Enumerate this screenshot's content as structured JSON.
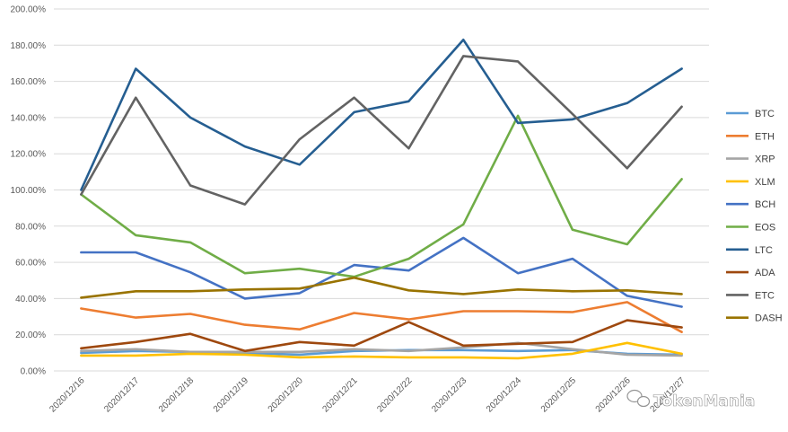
{
  "chart_data": {
    "type": "line",
    "title": "",
    "xlabel": "",
    "ylabel": "",
    "categories": [
      "2020/12/16",
      "2020/12/17",
      "2020/12/18",
      "2020/12/19",
      "2020/12/20",
      "2020/12/21",
      "2020/12/22",
      "2020/12/23",
      "2020/12/24",
      "2020/12/25",
      "2020/12/26",
      "2020/12/27"
    ],
    "ylim": [
      0,
      200
    ],
    "yticks": [
      0,
      20,
      40,
      60,
      80,
      100,
      120,
      140,
      160,
      180,
      200
    ],
    "ytick_labels": [
      "0.00%",
      "20.00%",
      "40.00%",
      "60.00%",
      "80.00%",
      "100.00%",
      "120.00%",
      "140.00%",
      "160.00%",
      "180.00%",
      "200.00%"
    ],
    "grid": "horizontal",
    "legend_position": "right",
    "series": [
      {
        "name": "BTC",
        "color": "#5B9BD5",
        "values": [
          10,
          11,
          10.5,
          10,
          9,
          11,
          11.5,
          11.5,
          11,
          11.5,
          9.5,
          9
        ]
      },
      {
        "name": "ETH",
        "color": "#ED7D31",
        "values": [
          34.5,
          29.5,
          31.5,
          25.5,
          23,
          32,
          28.5,
          33,
          33,
          32.5,
          38,
          21.5
        ]
      },
      {
        "name": "XRP",
        "color": "#A5A5A5",
        "values": [
          11,
          12,
          10.5,
          10.5,
          10.5,
          12,
          11,
          13,
          15.5,
          12,
          9,
          8.5
        ]
      },
      {
        "name": "XLM",
        "color": "#FFC000",
        "values": [
          8.5,
          8.5,
          9.5,
          9,
          7.5,
          8,
          7.5,
          7.5,
          7,
          9.5,
          15.5,
          9.5
        ]
      },
      {
        "name": "BCH",
        "color": "#4472C4",
        "values": [
          65.5,
          65.5,
          54.5,
          40,
          43,
          58.5,
          55.5,
          73.5,
          54,
          62,
          41.5,
          35.5
        ]
      },
      {
        "name": "EOS",
        "color": "#70AD47",
        "values": [
          97.5,
          75,
          71,
          54,
          56.5,
          52,
          62,
          81,
          141,
          78,
          70,
          106
        ]
      },
      {
        "name": "LTC",
        "color": "#255E91",
        "values": [
          100,
          167,
          140,
          124,
          114,
          143,
          149,
          183,
          137,
          139,
          148,
          167
        ]
      },
      {
        "name": "ADA",
        "color": "#9E480E",
        "values": [
          12.5,
          16,
          20.5,
          11,
          16,
          14,
          27,
          14,
          15,
          16,
          28,
          24
        ]
      },
      {
        "name": "ETC",
        "color": "#636363",
        "values": [
          97.5,
          151,
          102.5,
          92,
          128,
          151,
          123,
          174,
          171,
          142,
          112,
          146
        ]
      },
      {
        "name": "DASH",
        "color": "#997300",
        "values": [
          40.5,
          44,
          44,
          45,
          45.5,
          51.5,
          44.5,
          42.5,
          45,
          44,
          44.5,
          42.5
        ]
      }
    ]
  },
  "watermark": {
    "text": "TokenMania",
    "icon": "wechat-icon"
  }
}
